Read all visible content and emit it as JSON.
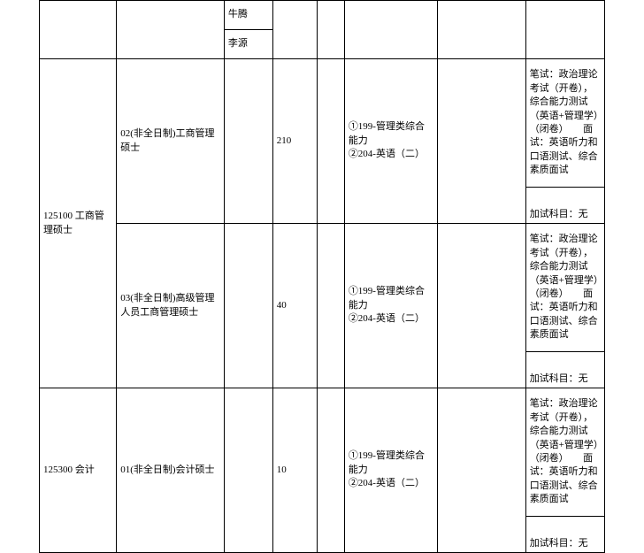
{
  "top": {
    "name1": "牛腾",
    "name2": "李源"
  },
  "rows": [
    {
      "code_label": "125100 工商管理硕士",
      "subs": [
        {
          "col2": "02(非全日制)工商管理硕士",
          "col4": "210",
          "col6": "①199-管理类综合能力\n②204-英语（二）",
          "col8_main": "笔试：政治理论考试（开卷），综合能力测试（英语+管理学）（闭卷）　　面试：英语听力和口语测试、综合素质面试",
          "col8_add": "加试科目：无"
        },
        {
          "col2": "03(非全日制)高级管理人员工商管理硕士",
          "col4": "40",
          "col6": "①199-管理类综合能力\n②204-英语（二）",
          "col8_main": "笔试：政治理论考试（开卷），综合能力测试（英语+管理学）（闭卷）　　面试：英语听力和口语测试、综合素质面试",
          "col8_add": "加试科目：无"
        }
      ]
    },
    {
      "code_label": "125300 会计",
      "subs": [
        {
          "col2": "01(非全日制)会计硕士",
          "col4": "10",
          "col6": "①199-管理类综合能力\n②204-英语（二）",
          "col8_main": "笔试：政治理论考试（开卷），综合能力测试（英语+管理学）（闭卷）　　面试：英语听力和口语测试、综合素质面试",
          "col8_add": "加试科目：无"
        }
      ]
    }
  ]
}
